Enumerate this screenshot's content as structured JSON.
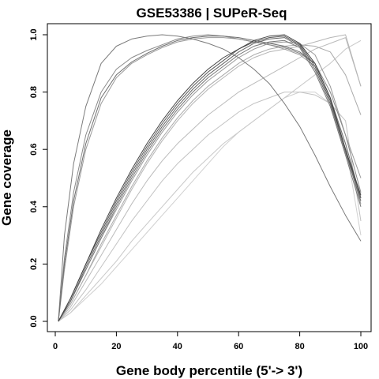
{
  "chart_data": {
    "type": "line",
    "title": "GSE53386 | SUPeR-Seq",
    "xlabel": "Gene body percentile (5'-> 3')",
    "ylabel": "Gene coverage",
    "xlim": [
      0,
      100
    ],
    "ylim": [
      0,
      1
    ],
    "xticks": [
      "0",
      "20",
      "40",
      "60",
      "80",
      "100"
    ],
    "yticks": [
      "0.0",
      "0.2",
      "0.4",
      "0.6",
      "0.8",
      "1.0"
    ],
    "grid": false,
    "series": [
      {
        "color": "#7a7a7a",
        "x": [
          1,
          3,
          6,
          10,
          15,
          20,
          25,
          30,
          35,
          40,
          45,
          50,
          55,
          60,
          65,
          70,
          75,
          80,
          85,
          90,
          95,
          100
        ],
        "y": [
          0.0,
          0.3,
          0.55,
          0.75,
          0.9,
          0.96,
          0.985,
          0.995,
          1.0,
          0.995,
          0.985,
          0.97,
          0.95,
          0.92,
          0.88,
          0.83,
          0.76,
          0.68,
          0.58,
          0.47,
          0.37,
          0.28
        ]
      },
      {
        "color": "#8a8a8a",
        "x": [
          1,
          3,
          6,
          10,
          15,
          20,
          25,
          30,
          35,
          40,
          45,
          50,
          55,
          60,
          65,
          70,
          75,
          80,
          85,
          90,
          95,
          100
        ],
        "y": [
          0.0,
          0.22,
          0.45,
          0.65,
          0.8,
          0.88,
          0.92,
          0.945,
          0.965,
          0.985,
          0.995,
          1.0,
          0.995,
          0.985,
          0.975,
          0.965,
          0.955,
          0.935,
          0.9,
          0.8,
          0.65,
          0.45
        ]
      },
      {
        "color": "#6e6e6e",
        "x": [
          1,
          3,
          6,
          10,
          15,
          20,
          25,
          30,
          35,
          40,
          45,
          50,
          55,
          60,
          65,
          70,
          75,
          80,
          85,
          90,
          95,
          100
        ],
        "y": [
          0.0,
          0.2,
          0.42,
          0.62,
          0.78,
          0.86,
          0.905,
          0.935,
          0.96,
          0.98,
          0.99,
          0.995,
          0.995,
          0.99,
          0.98,
          0.97,
          0.96,
          0.94,
          0.9,
          0.78,
          0.62,
          0.43
        ]
      },
      {
        "color": "#9a9a9a",
        "x": [
          1,
          3,
          6,
          10,
          15,
          20,
          25,
          30,
          35,
          40,
          45,
          50,
          55,
          60,
          65,
          70,
          75,
          80,
          85,
          90,
          95,
          100
        ],
        "y": [
          0.0,
          0.18,
          0.4,
          0.6,
          0.76,
          0.85,
          0.9,
          0.93,
          0.955,
          0.975,
          0.985,
          0.99,
          0.99,
          0.985,
          0.975,
          0.965,
          0.95,
          0.93,
          0.89,
          0.77,
          0.6,
          0.41
        ]
      },
      {
        "color": "#444444",
        "x": [
          1,
          5,
          10,
          15,
          20,
          25,
          30,
          35,
          40,
          45,
          50,
          55,
          60,
          65,
          70,
          75,
          80,
          85,
          90,
          95,
          100
        ],
        "y": [
          0.0,
          0.08,
          0.2,
          0.32,
          0.43,
          0.53,
          0.62,
          0.7,
          0.77,
          0.83,
          0.88,
          0.92,
          0.95,
          0.98,
          0.995,
          1.0,
          0.97,
          0.9,
          0.78,
          0.6,
          0.44
        ]
      },
      {
        "color": "#5a5a5a",
        "x": [
          1,
          5,
          10,
          15,
          20,
          25,
          30,
          35,
          40,
          45,
          50,
          55,
          60,
          65,
          70,
          75,
          80,
          85,
          90,
          95,
          100
        ],
        "y": [
          0.0,
          0.08,
          0.2,
          0.31,
          0.42,
          0.52,
          0.61,
          0.69,
          0.76,
          0.82,
          0.87,
          0.91,
          0.95,
          0.975,
          0.99,
          0.995,
          0.965,
          0.89,
          0.77,
          0.6,
          0.43
        ]
      },
      {
        "color": "#666666",
        "x": [
          1,
          5,
          10,
          15,
          20,
          25,
          30,
          35,
          40,
          45,
          50,
          55,
          60,
          65,
          70,
          75,
          80,
          85,
          90,
          95,
          100
        ],
        "y": [
          0.0,
          0.07,
          0.19,
          0.3,
          0.41,
          0.51,
          0.6,
          0.68,
          0.75,
          0.81,
          0.86,
          0.9,
          0.94,
          0.97,
          0.985,
          0.99,
          0.96,
          0.88,
          0.76,
          0.59,
          0.42
        ]
      },
      {
        "color": "#777777",
        "x": [
          1,
          5,
          10,
          15,
          20,
          25,
          30,
          35,
          40,
          45,
          50,
          55,
          60,
          65,
          70,
          75,
          80,
          85,
          90,
          95,
          100
        ],
        "y": [
          0.0,
          0.07,
          0.18,
          0.29,
          0.4,
          0.5,
          0.59,
          0.67,
          0.74,
          0.8,
          0.85,
          0.89,
          0.93,
          0.96,
          0.975,
          0.98,
          0.955,
          0.87,
          0.75,
          0.58,
          0.4
        ]
      },
      {
        "color": "#999999",
        "x": [
          1,
          5,
          10,
          15,
          20,
          25,
          30,
          35,
          40,
          45,
          50,
          55,
          60,
          65,
          70,
          75,
          80,
          85,
          90,
          95,
          100
        ],
        "y": [
          0.0,
          0.07,
          0.18,
          0.29,
          0.39,
          0.49,
          0.58,
          0.66,
          0.73,
          0.79,
          0.84,
          0.88,
          0.92,
          0.95,
          0.97,
          0.975,
          0.97,
          0.93,
          0.82,
          0.65,
          0.5
        ]
      },
      {
        "color": "#aaaaaa",
        "x": [
          1,
          5,
          10,
          15,
          20,
          25,
          30,
          35,
          40,
          45,
          50,
          55,
          60,
          65,
          70,
          75,
          80,
          85,
          90,
          95,
          100
        ],
        "y": [
          0.0,
          0.06,
          0.16,
          0.27,
          0.37,
          0.47,
          0.56,
          0.64,
          0.71,
          0.77,
          0.82,
          0.86,
          0.9,
          0.93,
          0.95,
          0.96,
          0.965,
          0.96,
          0.94,
          0.86,
          0.72
        ]
      },
      {
        "color": "#b5b5b5",
        "x": [
          1,
          5,
          10,
          15,
          20,
          25,
          30,
          35,
          40,
          45,
          50,
          55,
          60,
          65,
          70,
          75,
          80,
          85,
          90,
          95,
          100
        ],
        "y": [
          0.0,
          0.06,
          0.16,
          0.26,
          0.36,
          0.46,
          0.55,
          0.63,
          0.7,
          0.76,
          0.81,
          0.85,
          0.89,
          0.92,
          0.94,
          0.95,
          0.96,
          0.975,
          0.99,
          1.0,
          0.82
        ]
      },
      {
        "color": "#bbbbbb",
        "x": [
          1,
          5,
          10,
          15,
          20,
          25,
          30,
          35,
          40,
          45,
          50,
          55,
          60,
          65,
          70,
          75,
          80,
          85,
          90,
          95,
          100
        ],
        "y": [
          0.0,
          0.05,
          0.14,
          0.23,
          0.32,
          0.41,
          0.49,
          0.56,
          0.62,
          0.67,
          0.72,
          0.76,
          0.8,
          0.83,
          0.86,
          0.89,
          0.92,
          0.95,
          0.97,
          0.99,
          0.82
        ]
      },
      {
        "color": "#c2c2c2",
        "x": [
          1,
          5,
          10,
          15,
          20,
          25,
          30,
          35,
          40,
          45,
          50,
          55,
          60,
          65,
          70,
          75,
          80,
          85,
          90,
          95,
          100
        ],
        "y": [
          0.0,
          0.04,
          0.11,
          0.19,
          0.27,
          0.35,
          0.42,
          0.49,
          0.55,
          0.6,
          0.65,
          0.69,
          0.73,
          0.76,
          0.78,
          0.8,
          0.8,
          0.79,
          0.76,
          0.7,
          0.35
        ]
      },
      {
        "color": "#c8c8c8",
        "x": [
          1,
          5,
          10,
          15,
          20,
          25,
          30,
          35,
          40,
          45,
          50,
          55,
          60,
          65,
          70,
          75,
          80,
          85,
          90,
          95,
          100
        ],
        "y": [
          0.0,
          0.03,
          0.09,
          0.15,
          0.21,
          0.28,
          0.34,
          0.4,
          0.46,
          0.52,
          0.57,
          0.62,
          0.66,
          0.7,
          0.74,
          0.78,
          0.82,
          0.86,
          0.9,
          0.95,
          0.98
        ]
      },
      {
        "color": "#d0d0d0",
        "x": [
          1,
          5,
          10,
          15,
          20,
          25,
          30,
          35,
          40,
          45,
          50,
          55,
          60,
          65,
          70,
          75,
          80,
          85,
          90,
          95,
          100
        ],
        "y": [
          0.0,
          0.03,
          0.08,
          0.13,
          0.19,
          0.25,
          0.31,
          0.37,
          0.43,
          0.49,
          0.55,
          0.61,
          0.66,
          0.7,
          0.74,
          0.78,
          0.8,
          0.8,
          0.76,
          0.62,
          0.3
        ]
      }
    ]
  }
}
